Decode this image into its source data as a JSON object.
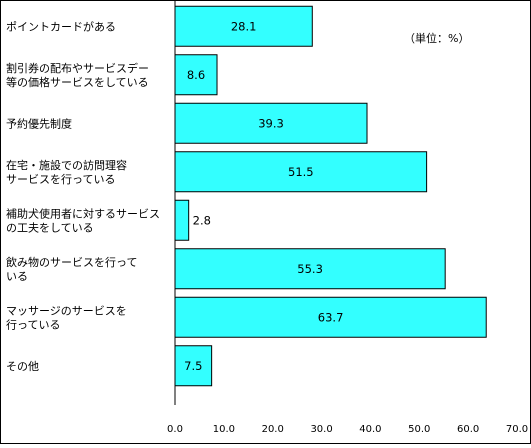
{
  "chart_data": {
    "type": "bar",
    "orientation": "horizontal",
    "unit_note": "（単位：%）",
    "categories": [
      [
        "ポイントカードがある"
      ],
      [
        "割引券の配布やサービスデー",
        "等の価格サービスをしている"
      ],
      [
        "予約優先制度"
      ],
      [
        "在宅・施設での訪問理容",
        "サービスを行っている"
      ],
      [
        "補助犬使用者に対するサービス",
        "の工夫をしている"
      ],
      [
        "飲み物のサービスを行って",
        "いる"
      ],
      [
        "マッサージのサービスを",
        "行っている"
      ],
      [
        "その他"
      ]
    ],
    "values": [
      28.1,
      8.6,
      39.3,
      51.5,
      2.8,
      55.3,
      63.7,
      7.5
    ],
    "value_labels": [
      "28.1",
      "8.6",
      "39.3",
      "51.5",
      "2.8",
      "55.3",
      "63.7",
      "7.5"
    ],
    "xlim": [
      0,
      70
    ],
    "x_ticks": [
      "0.0",
      "10.0",
      "20.0",
      "30.0",
      "40.0",
      "50.0",
      "60.0",
      "70.0"
    ],
    "grid": false,
    "legend": "none",
    "bar_color": "#33FFFF",
    "bar_border_color": "#000000"
  }
}
